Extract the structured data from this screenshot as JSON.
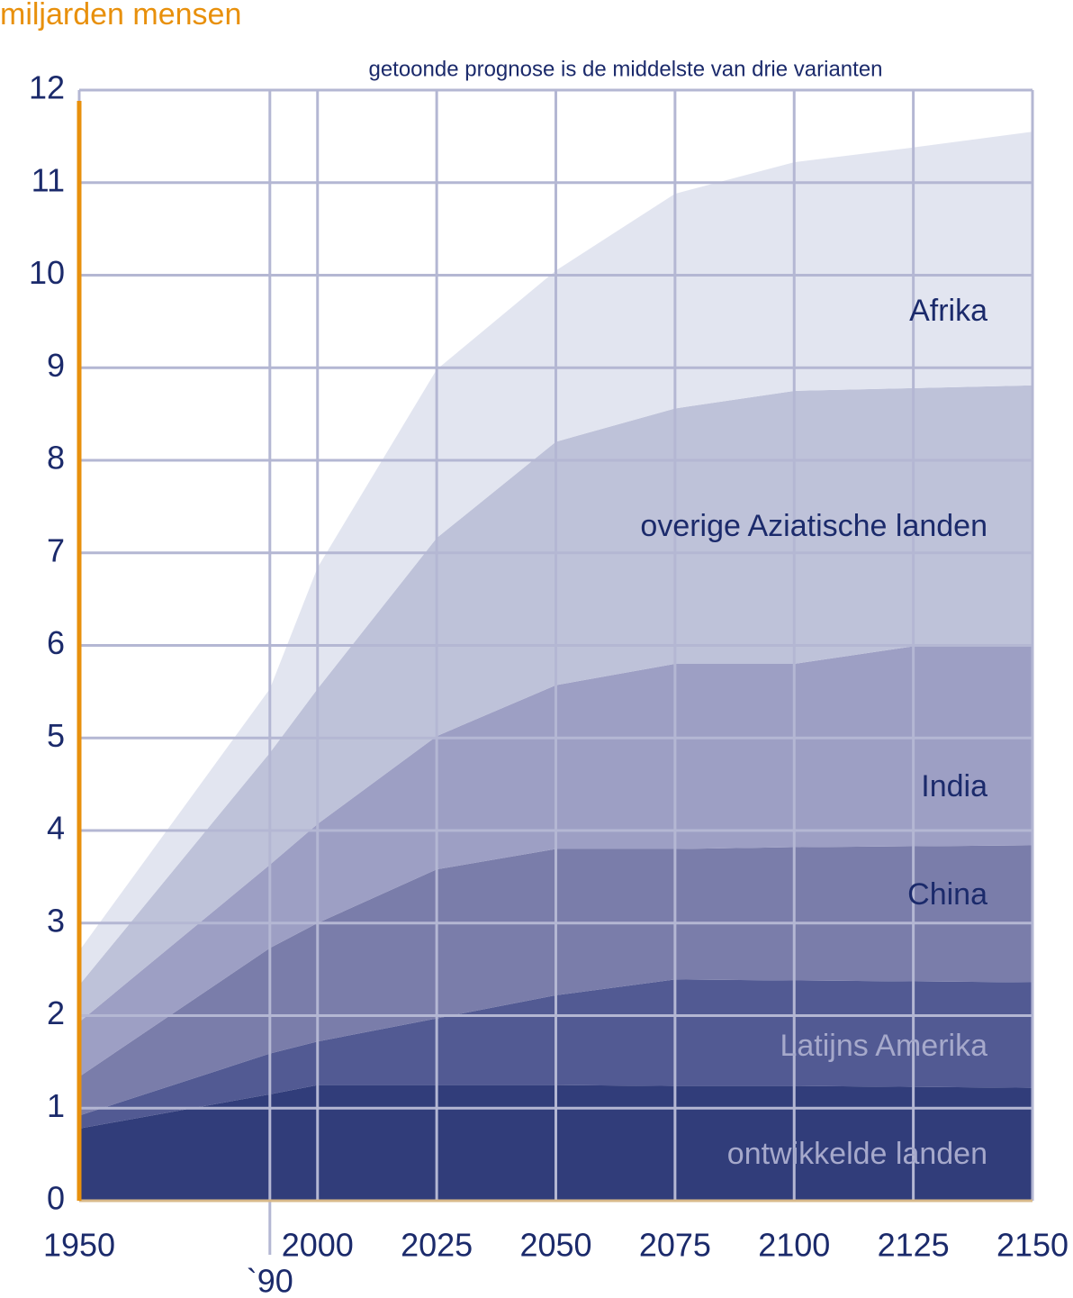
{
  "chart_data": {
    "type": "area",
    "stacked": true,
    "title": "getoonde prognose is de middelste van drie varianten",
    "y_label": "miljarden mensen",
    "x": [
      1950,
      1990,
      2000,
      2025,
      2050,
      2075,
      2100,
      2125,
      2150
    ],
    "xlim": [
      1950,
      2150
    ],
    "xticks": [
      1950,
      {
        "value": 1990,
        "label": "`90"
      },
      2000,
      2025,
      2050,
      2075,
      2100,
      2125,
      2150
    ],
    "ylim": [
      0,
      12
    ],
    "yticks": [
      0,
      1,
      2,
      3,
      4,
      5,
      6,
      7,
      8,
      9,
      10,
      11,
      12
    ],
    "grid": true,
    "axis_color": "#e8900c",
    "series": [
      {
        "name": "ontwikkelde landen",
        "color": "#313d7a",
        "label_color": "#a6a9cb",
        "values": [
          0.78,
          1.15,
          1.25,
          1.25,
          1.25,
          1.24,
          1.24,
          1.23,
          1.22
        ]
      },
      {
        "name": "Latijns Amerika",
        "color": "#525a93",
        "label_color": "#a6a9cb",
        "values": [
          0.14,
          0.44,
          0.47,
          0.72,
          0.97,
          1.15,
          1.14,
          1.14,
          1.14
        ]
      },
      {
        "name": "China",
        "color": "#7a7daa",
        "label_color": "#1b2a6b",
        "values": [
          0.42,
          1.14,
          1.28,
          1.61,
          1.58,
          1.41,
          1.44,
          1.46,
          1.48
        ]
      },
      {
        "name": "India",
        "color": "#9d9fc4",
        "label_color": "#1b2a6b",
        "values": [
          0.59,
          0.9,
          1.07,
          1.44,
          1.77,
          2.0,
          1.98,
          2.16,
          2.17
        ]
      },
      {
        "name": "overige Aziatische landen",
        "color": "#bec2d9",
        "label_color": "#1b2a6b",
        "values": [
          0.4,
          1.21,
          1.46,
          2.14,
          2.63,
          2.76,
          2.95,
          2.79,
          2.8
        ]
      },
      {
        "name": "Afrika",
        "color": "#e2e5f0",
        "label_color": "#1b2a6b",
        "values": [
          0.37,
          0.69,
          1.31,
          1.82,
          1.85,
          2.32,
          2.47,
          2.6,
          2.74
        ]
      }
    ]
  }
}
